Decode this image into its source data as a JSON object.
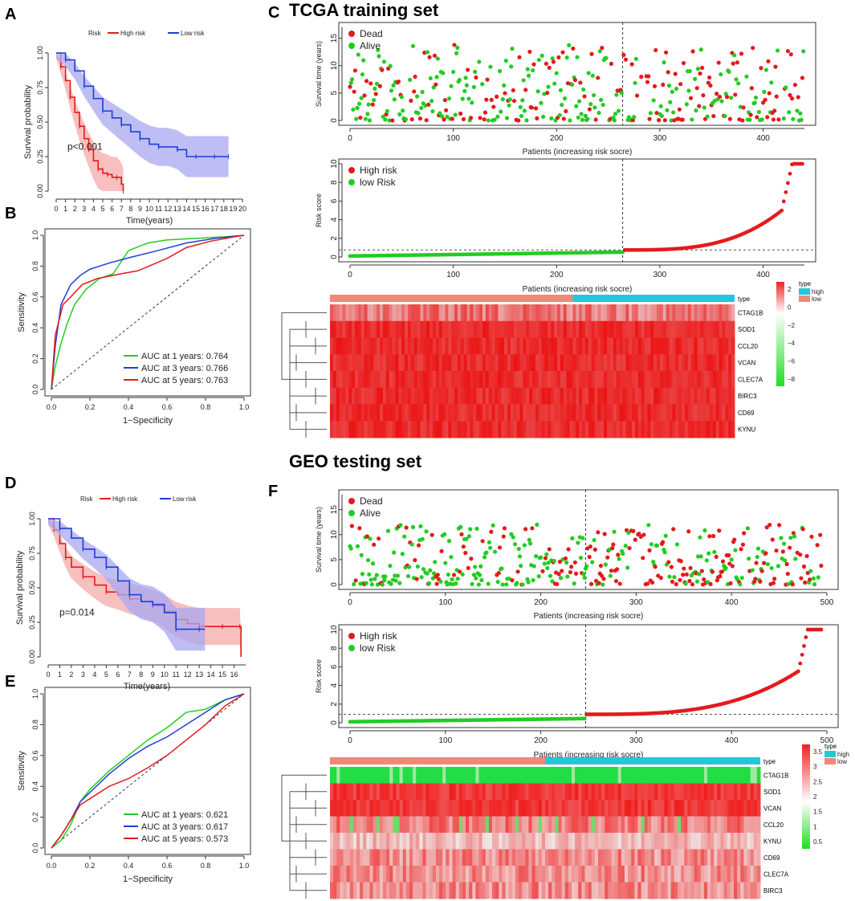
{
  "colors": {
    "red": "#e41a1c",
    "blue": "#1f3fd6",
    "green": "#22cc22",
    "cyan": "#22c8d8",
    "salmon": "#f08878",
    "band_red": "#f5aaaa",
    "band_blue": "#a8a8f0"
  },
  "panels": {
    "A": "A",
    "B": "B",
    "C": "C",
    "D": "D",
    "E": "E",
    "F": "F"
  },
  "sections": {
    "c": "TCGA training set",
    "f": "GEO testing set"
  },
  "chart_data": [
    {
      "id": "A",
      "type": "line",
      "title": "",
      "legend_title": "Risk",
      "legend": [
        "High risk",
        "Low risk"
      ],
      "xlabel": "Time(years)",
      "ylabel": "Survival probability",
      "xlim": [
        0,
        20
      ],
      "ylim": [
        0,
        1
      ],
      "xticks": [
        "0",
        "1",
        "2",
        "3",
        "4",
        "5",
        "6",
        "7",
        "8",
        "9",
        "10",
        "11",
        "12",
        "13",
        "14",
        "15",
        "16",
        "17",
        "18",
        "19",
        "20"
      ],
      "yticks": [
        "0.00",
        "0.25",
        "0.50",
        "0.75",
        "1.00"
      ],
      "annotation": "p<0.001",
      "series": [
        {
          "name": "High risk",
          "x": [
            0,
            0.5,
            1,
            1.5,
            2,
            2.5,
            3,
            3.5,
            4,
            4.5,
            5,
            5.5,
            6,
            6.5,
            7,
            7.2
          ],
          "y": [
            1,
            0.9,
            0.8,
            0.68,
            0.57,
            0.47,
            0.38,
            0.3,
            0.22,
            0.16,
            0.13,
            0.12,
            0.1,
            0.1,
            0.05,
            0
          ]
        },
        {
          "name": "Low risk",
          "x": [
            0,
            1,
            2,
            3,
            4,
            5,
            6,
            7,
            8,
            9,
            10,
            11,
            12,
            13,
            14,
            15,
            16,
            17,
            18,
            18.5
          ],
          "y": [
            1,
            0.95,
            0.87,
            0.76,
            0.67,
            0.58,
            0.53,
            0.48,
            0.43,
            0.38,
            0.34,
            0.32,
            0.32,
            0.3,
            0.25,
            0.25,
            0.25,
            0.25,
            0.25,
            0.25
          ]
        }
      ]
    },
    {
      "id": "B",
      "type": "line",
      "xlabel": "1−Specificity",
      "ylabel": "Sensitivity",
      "xlim": [
        0,
        1
      ],
      "ylim": [
        0,
        1
      ],
      "xticks": [
        "0.0",
        "0.2",
        "0.4",
        "0.6",
        "0.8",
        "1.0"
      ],
      "yticks": [
        "0.0",
        "0.2",
        "0.4",
        "0.6",
        "0.8",
        "1.0"
      ],
      "legend": [
        "AUC at 1 years: 0.764",
        "AUC at 3 years: 0.766",
        "AUC at 5 years: 0.763"
      ],
      "series": [
        {
          "name": "1 year",
          "x": [
            0,
            0.02,
            0.05,
            0.08,
            0.12,
            0.18,
            0.25,
            0.32,
            0.4,
            0.5,
            0.6,
            0.75,
            0.9,
            1
          ],
          "y": [
            0,
            0.15,
            0.3,
            0.42,
            0.55,
            0.65,
            0.72,
            0.75,
            0.9,
            0.95,
            0.97,
            0.98,
            0.99,
            1
          ]
        },
        {
          "name": "3 years",
          "x": [
            0,
            0.02,
            0.05,
            0.1,
            0.15,
            0.2,
            0.3,
            0.42,
            0.55,
            0.7,
            0.85,
            1
          ],
          "y": [
            0,
            0.28,
            0.55,
            0.68,
            0.74,
            0.78,
            0.82,
            0.86,
            0.9,
            0.95,
            0.98,
            1
          ]
        },
        {
          "name": "5 years",
          "x": [
            0,
            0.02,
            0.06,
            0.1,
            0.16,
            0.24,
            0.36,
            0.45,
            0.6,
            0.7,
            0.82,
            0.95,
            1
          ],
          "y": [
            0,
            0.35,
            0.55,
            0.6,
            0.68,
            0.72,
            0.75,
            0.77,
            0.85,
            0.92,
            0.96,
            0.99,
            1
          ]
        }
      ]
    },
    {
      "id": "C1",
      "type": "scatter",
      "section": "TCGA training set",
      "xlabel": "Patients (increasing risk socre)",
      "ylabel": "Survival time (years)",
      "xlim": [
        0,
        440
      ],
      "ylim": [
        0,
        17
      ],
      "xticks": [
        "0",
        "100",
        "200",
        "300",
        "400"
      ],
      "yticks": [
        "0",
        "5",
        "10",
        "15"
      ],
      "legend": [
        "Dead",
        "Alive"
      ],
      "cutoff_x": 264,
      "n": 440
    },
    {
      "id": "C2",
      "type": "scatter",
      "xlabel": "Patients (increasing risk socre)",
      "ylabel": "Risk score",
      "xlim": [
        0,
        440
      ],
      "ylim": [
        0,
        10
      ],
      "xticks": [
        "0",
        "100",
        "200",
        "300",
        "400"
      ],
      "yticks": [
        "0",
        "2",
        "4",
        "6",
        "8",
        "10"
      ],
      "legend": [
        "High risk",
        "low Risk"
      ],
      "cutoff_x": 264,
      "cutoff_y": 0.75,
      "n": 440
    },
    {
      "id": "C3",
      "type": "heatmap",
      "genes": [
        "CTAG1B",
        "SOD1",
        "CCL20",
        "VCAN",
        "CLEC7A",
        "BIRC3",
        "CD69",
        "KYNU"
      ],
      "annotation_label": "type",
      "groups": [
        "high",
        "low"
      ],
      "split_fraction": 0.6,
      "scale": [
        "2",
        "0",
        "−2",
        "−4",
        "−6",
        "−8"
      ],
      "legend_title": "type"
    },
    {
      "id": "D",
      "type": "line",
      "legend_title": "Risk",
      "legend": [
        "High risk",
        "Low risk"
      ],
      "xlabel": "Time(years)",
      "ylabel": "Survival probability",
      "xlim": [
        0,
        17
      ],
      "ylim": [
        0,
        1
      ],
      "xticks": [
        "0",
        "1",
        "2",
        "3",
        "4",
        "5",
        "6",
        "7",
        "8",
        "9",
        "10",
        "11",
        "12",
        "13",
        "14",
        "15",
        "16"
      ],
      "yticks": [
        "0.00",
        "0.25",
        "0.50",
        "0.75",
        "1.00"
      ],
      "annotation": "p=0.014",
      "series": [
        {
          "name": "High risk",
          "x": [
            0,
            0.5,
            1,
            1.5,
            2,
            3,
            4,
            5,
            6,
            7,
            8,
            9,
            10,
            11,
            12,
            13,
            14,
            15,
            16,
            16.5,
            16.6
          ],
          "y": [
            1,
            0.92,
            0.82,
            0.72,
            0.65,
            0.58,
            0.52,
            0.47,
            0.45,
            0.42,
            0.4,
            0.37,
            0.33,
            0.27,
            0.24,
            0.22,
            0.22,
            0.22,
            0.22,
            0.22,
            0
          ]
        },
        {
          "name": "Low risk",
          "x": [
            0,
            1,
            2,
            3,
            4,
            5,
            6,
            7,
            8,
            9,
            10,
            11,
            12,
            13,
            13.5
          ],
          "y": [
            1,
            0.93,
            0.86,
            0.78,
            0.72,
            0.65,
            0.55,
            0.45,
            0.4,
            0.38,
            0.32,
            0.2,
            0.2,
            0.2,
            0.2
          ]
        }
      ]
    },
    {
      "id": "E",
      "type": "line",
      "xlabel": "1−Specificity",
      "ylabel": "Sensitivity",
      "xlim": [
        0,
        1
      ],
      "ylim": [
        0,
        1
      ],
      "xticks": [
        "0.0",
        "0.2",
        "0.4",
        "0.6",
        "0.8",
        "1.0"
      ],
      "yticks": [
        "0.0",
        "0.2",
        "0.4",
        "0.6",
        "0.8",
        "1.0"
      ],
      "legend": [
        "AUC at 1 years: 0.621",
        "AUC at 3 years: 0.617",
        "AUC at 5 years: 0.573"
      ],
      "series": [
        {
          "name": "1 year",
          "x": [
            0,
            0.05,
            0.1,
            0.15,
            0.2,
            0.3,
            0.4,
            0.5,
            0.6,
            0.7,
            0.8,
            0.9,
            1
          ],
          "y": [
            0,
            0.05,
            0.15,
            0.3,
            0.38,
            0.5,
            0.6,
            0.7,
            0.78,
            0.88,
            0.9,
            0.96,
            1
          ]
        },
        {
          "name": "3 years",
          "x": [
            0,
            0.05,
            0.1,
            0.15,
            0.2,
            0.3,
            0.4,
            0.5,
            0.6,
            0.7,
            0.8,
            0.9,
            1
          ],
          "y": [
            0,
            0.08,
            0.18,
            0.3,
            0.36,
            0.48,
            0.58,
            0.66,
            0.72,
            0.8,
            0.88,
            0.96,
            1
          ]
        },
        {
          "name": "5 years",
          "x": [
            0,
            0.05,
            0.1,
            0.15,
            0.2,
            0.3,
            0.4,
            0.5,
            0.6,
            0.7,
            0.8,
            0.9,
            1
          ],
          "y": [
            0,
            0.08,
            0.18,
            0.28,
            0.32,
            0.4,
            0.45,
            0.52,
            0.6,
            0.7,
            0.8,
            0.92,
            1
          ]
        }
      ]
    },
    {
      "id": "F1",
      "type": "scatter",
      "section": "GEO testing set",
      "xlabel": "Patients (increasing risk socre)",
      "ylabel": "Survival time (years)",
      "xlim": [
        0,
        500
      ],
      "ylim": [
        0,
        18
      ],
      "xticks": [
        "0",
        "100",
        "200",
        "300",
        "400",
        "500"
      ],
      "yticks": [
        "0",
        "5",
        "10",
        "15"
      ],
      "legend": [
        "Dead",
        "Alive"
      ],
      "cutoff_x": 247,
      "n": 495
    },
    {
      "id": "F2",
      "type": "scatter",
      "xlabel": "Patients (increasing risk socre)",
      "ylabel": "Risk score",
      "xlim": [
        0,
        500
      ],
      "ylim": [
        0,
        10
      ],
      "xticks": [
        "0",
        "100",
        "200",
        "300",
        "400",
        "500"
      ],
      "yticks": [
        "0",
        "2",
        "4",
        "6",
        "8",
        "10"
      ],
      "legend": [
        "High risk",
        "low Risk"
      ],
      "cutoff_x": 247,
      "cutoff_y": 0.9,
      "n": 495
    },
    {
      "id": "F3",
      "type": "heatmap",
      "genes": [
        "CTAG1B",
        "SOD1",
        "VCAN",
        "CCL20",
        "KYNU",
        "CD69",
        "CLEC7A",
        "BIRC3"
      ],
      "annotation_label": "type",
      "groups": [
        "high",
        "low"
      ],
      "split_fraction": 0.5,
      "scale": [
        "3.5",
        "3",
        "2.5",
        "2",
        "1.5",
        "1",
        "0.5"
      ],
      "legend_title": "type"
    }
  ]
}
